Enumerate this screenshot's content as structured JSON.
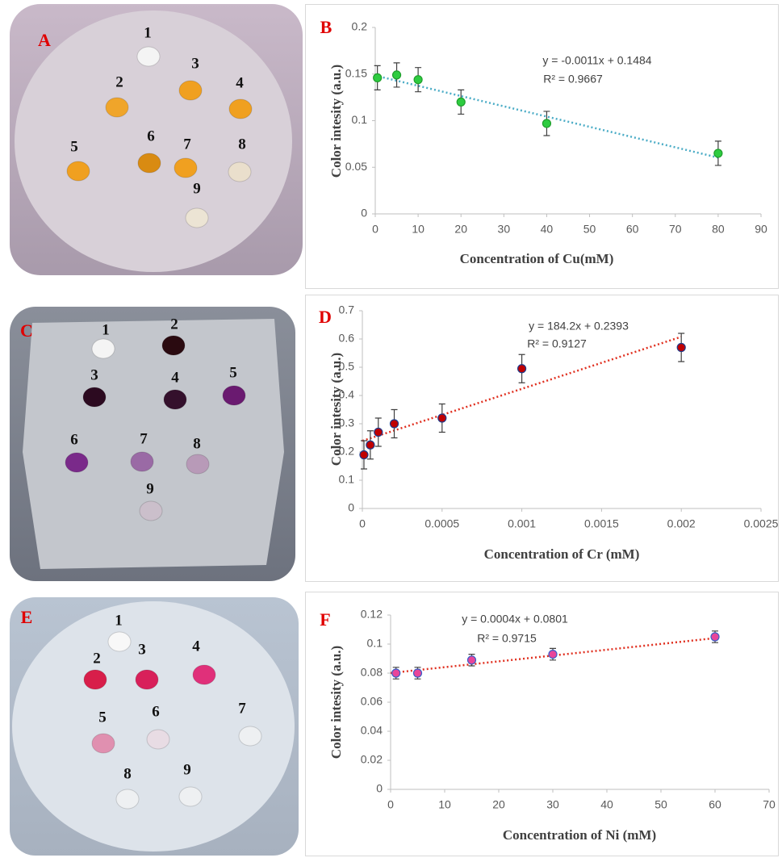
{
  "panels": [
    {
      "label": "A",
      "numbers": [
        "1",
        "2",
        "3",
        "4",
        "5",
        "6",
        "7",
        "8",
        "9"
      ]
    },
    {
      "label": "C",
      "numbers": [
        "1",
        "2",
        "3",
        "4",
        "5",
        "6",
        "7",
        "8",
        "9"
      ]
    },
    {
      "label": "E",
      "numbers": [
        "1",
        "2",
        "3",
        "4",
        "5",
        "6",
        "7",
        "8",
        "9"
      ]
    }
  ],
  "chart_data": [
    {
      "type": "scatter",
      "panel_label": "B",
      "x_label": "Concentration of Cu(mM)",
      "y_label": "Color intesity (a.u.)",
      "x": [
        0.5,
        5,
        10,
        20,
        40,
        80
      ],
      "values": [
        0.146,
        0.149,
        0.144,
        0.12,
        0.097,
        0.065
      ],
      "errors": [
        0.013,
        0.013,
        0.013,
        0.013,
        0.013,
        0.013
      ],
      "color": "#2ecc40",
      "edge_color": "#1f9e2c",
      "xlim": [
        0,
        90
      ],
      "xticks": [
        0,
        10,
        20,
        30,
        40,
        50,
        60,
        70,
        80,
        90
      ],
      "ylim": [
        0,
        0.2
      ],
      "yticks": [
        0,
        0.05,
        0.1,
        0.15,
        0.2
      ],
      "trendline": {
        "slope": -0.0011,
        "intercept": 0.1484,
        "color": "#4bacc6",
        "equation": "y = -0.0011x + 0.1484",
        "r_squared": "R² = 0.9667"
      }
    },
    {
      "type": "scatter",
      "panel_label": "D",
      "x_label": "Concentration of Cr (mM)",
      "y_label": "Color intesity (a.u.)",
      "x": [
        1e-05,
        5e-05,
        0.0001,
        0.0002,
        0.0005,
        0.001,
        0.002
      ],
      "values": [
        0.19,
        0.225,
        0.27,
        0.3,
        0.32,
        0.495,
        0.57
      ],
      "errors": [
        0.05,
        0.05,
        0.05,
        0.05,
        0.05,
        0.05,
        0.05
      ],
      "color": "#c00000",
      "edge_color": "#1f3a8a",
      "xlim": [
        0,
        0.0025
      ],
      "xticks": [
        0,
        0.0005,
        0.001,
        0.0015,
        0.002,
        0.0025
      ],
      "ylim": [
        0,
        0.7
      ],
      "yticks": [
        0,
        0.1,
        0.2,
        0.3,
        0.4,
        0.5,
        0.6,
        0.7
      ],
      "trendline": {
        "slope": 184.2,
        "intercept": 0.2393,
        "color": "#e03020",
        "equation": "y = 184.2x + 0.2393",
        "r_squared": "R² = 0.9127"
      }
    },
    {
      "type": "scatter",
      "panel_label": "F",
      "x_label": "Concentration of Ni (mM)",
      "y_label": "Color intesity (a.u.)",
      "x": [
        1,
        5,
        15,
        30,
        60
      ],
      "values": [
        0.08,
        0.08,
        0.089,
        0.093,
        0.105
      ],
      "errors": [
        0.004,
        0.004,
        0.004,
        0.004,
        0.004
      ],
      "color": "#e8459a",
      "edge_color": "#3a5fc8",
      "xlim": [
        0,
        70
      ],
      "xticks": [
        0,
        10,
        20,
        30,
        40,
        50,
        60,
        70
      ],
      "ylim": [
        0,
        0.12
      ],
      "yticks": [
        0,
        0.02,
        0.04,
        0.06,
        0.08,
        0.1,
        0.12
      ],
      "trendline": {
        "slope": 0.0004,
        "intercept": 0.0801,
        "color": "#e03020",
        "equation": "y = 0.0004x + 0.0801",
        "r_squared": "R² = 0.9715"
      }
    }
  ]
}
